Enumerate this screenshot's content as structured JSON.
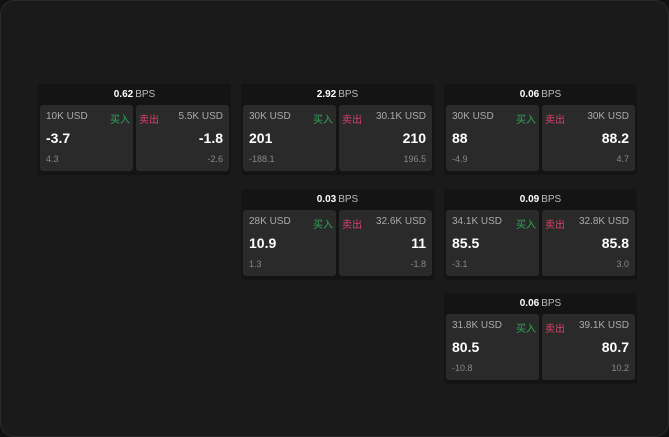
{
  "panels": [
    {
      "bps": "0.62",
      "unit": "BPS",
      "buy": {
        "size": "10K USD",
        "label": "买入",
        "price": "-3.7",
        "change": "4.3"
      },
      "sell": {
        "size": "5.5K USD",
        "label": "卖出",
        "price": "-1.8",
        "change": "-2.6"
      }
    },
    {
      "bps": "2.92",
      "unit": "BPS",
      "buy": {
        "size": "30K USD",
        "label": "买入",
        "price": "201",
        "change": "-188.1"
      },
      "sell": {
        "size": "30.1K USD",
        "label": "卖出",
        "price": "210",
        "change": "196.5"
      }
    },
    {
      "bps": "0.06",
      "unit": "BPS",
      "buy": {
        "size": "30K USD",
        "label": "买入",
        "price": "88",
        "change": "-4.9"
      },
      "sell": {
        "size": "30K USD",
        "label": "卖出",
        "price": "88.2",
        "change": "4.7"
      }
    },
    {
      "bps": "0.03",
      "unit": "BPS",
      "buy": {
        "size": "28K USD",
        "label": "买入",
        "price": "10.9",
        "change": "1.3"
      },
      "sell": {
        "size": "32.6K USD",
        "label": "卖出",
        "price": "11",
        "change": "-1.8"
      }
    },
    {
      "bps": "0.09",
      "unit": "BPS",
      "buy": {
        "size": "34.1K USD",
        "label": "买入",
        "price": "85.5",
        "change": "-3.1"
      },
      "sell": {
        "size": "32.8K USD",
        "label": "卖出",
        "price": "85.8",
        "change": "3.0"
      }
    },
    {
      "bps": "0.06",
      "unit": "BPS",
      "buy": {
        "size": "31.8K USD",
        "label": "买入",
        "price": "80.5",
        "change": "-10.8"
      },
      "sell": {
        "size": "39.1K USD",
        "label": "卖出",
        "price": "80.7",
        "change": "10.2"
      }
    }
  ],
  "colors": {
    "buy": "#2fa85a",
    "sell": "#d9416a"
  }
}
